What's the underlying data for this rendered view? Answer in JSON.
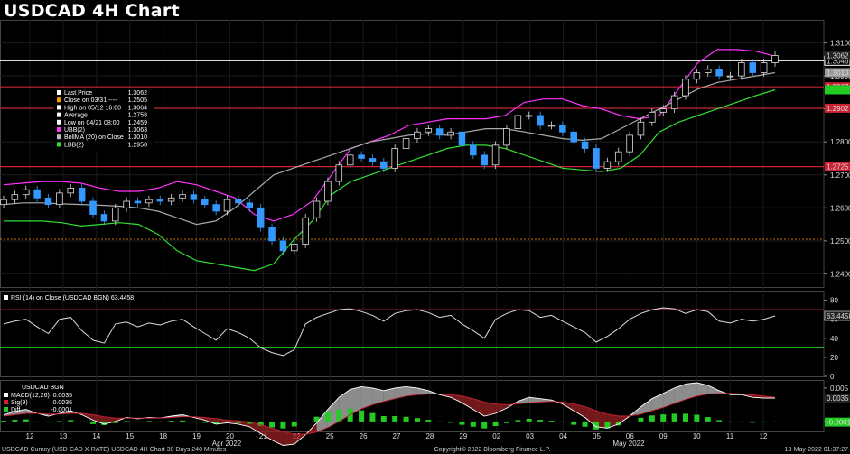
{
  "title": "USDCAD 4H Chart",
  "chart_data": [
    {
      "type": "candlestick",
      "title": "USDCAD 4H Chart",
      "ylim": [
        1.236,
        1.317
      ],
      "y_ticks": [
        "1.3100",
        "1.3000",
        "1.2900",
        "1.2800",
        "1.2700",
        "1.2600",
        "1.2500",
        "1.2400"
      ],
      "x_ticks": [
        "12",
        "13",
        "14",
        "15",
        "18",
        "19",
        "20",
        "21",
        "22",
        "25",
        "26",
        "27",
        "28",
        "29",
        "02",
        "03",
        "04",
        "05",
        "06",
        "09",
        "10",
        "11",
        "12"
      ],
      "month_labels": [
        "Apr 2022",
        "May 2022"
      ],
      "legend": [
        {
          "label": "Last Price",
          "value": "1.3062",
          "color": "#ffffff"
        },
        {
          "label": "Close on 03/31 ----",
          "value": "1.2505",
          "color": "#ff9900"
        },
        {
          "label": "High on 05/12 16:00",
          "value": "1.3064",
          "color": "#ffffff"
        },
        {
          "label": "Average",
          "value": "1.2758",
          "color": "#ffffff"
        },
        {
          "label": "Low on 04/21 08:00",
          "value": "1.2459",
          "color": "#ffffff"
        },
        {
          "label": "UBB(2)",
          "value": "1.3063",
          "color": "#ff33ff"
        },
        {
          "label": "BollMA (20)  on Close",
          "value": "1.3010",
          "color": "#bbbbbb"
        },
        {
          "label": "LBB(2)",
          "value": "1.2958",
          "color": "#33dd33"
        }
      ],
      "horizontal_lines": [
        {
          "value": 1.3046,
          "label": "1.3046",
          "color": "#ffffff"
        },
        {
          "value": 1.2967,
          "label": "1.2967",
          "color": "#cc2233"
        },
        {
          "value": 1.2902,
          "label": "1.2902",
          "color": "#cc2233"
        },
        {
          "value": 1.2725,
          "label": "1.2725",
          "color": "#cc2233"
        },
        {
          "value": 1.2505,
          "label": "",
          "color": "#ff9900"
        }
      ],
      "right_labels": [
        {
          "value": 1.3062,
          "label": "1.3062",
          "color": "#ffffff"
        },
        {
          "value": 1.301,
          "label": "1.3010",
          "color": "#999999"
        },
        {
          "value": 1.2958,
          "label": "",
          "color": "#22cc22"
        }
      ],
      "close_series": [
        1.2625,
        1.264,
        1.2655,
        1.263,
        1.261,
        1.2645,
        1.266,
        1.262,
        1.258,
        1.256,
        1.26,
        1.262,
        1.2615,
        1.2625,
        1.262,
        1.263,
        1.264,
        1.2625,
        1.261,
        1.259,
        1.2625,
        1.2615,
        1.26,
        1.254,
        1.25,
        1.247,
        1.249,
        1.257,
        1.262,
        1.268,
        1.273,
        1.276,
        1.275,
        1.274,
        1.272,
        1.278,
        1.281,
        1.283,
        1.284,
        1.282,
        1.283,
        1.279,
        1.276,
        1.273,
        1.279,
        1.284,
        1.288,
        1.288,
        1.285,
        1.285,
        1.283,
        1.28,
        1.278,
        1.272,
        1.274,
        1.277,
        1.282,
        1.286,
        1.289,
        1.29,
        1.294,
        1.299,
        1.301,
        1.302,
        1.3,
        1.3,
        1.304,
        1.301,
        1.304,
        1.3062
      ],
      "upper_band": [
        1.267,
        1.2675,
        1.268,
        1.268,
        1.2675,
        1.266,
        1.265,
        1.265,
        1.266,
        1.268,
        1.267,
        1.265,
        1.263,
        1.258,
        1.256,
        1.258,
        1.262,
        1.27,
        1.278,
        1.28,
        1.282,
        1.285,
        1.286,
        1.287,
        1.287,
        1.287,
        1.288,
        1.292,
        1.293,
        1.293,
        1.291,
        1.29,
        1.288,
        1.287,
        1.288,
        1.296,
        1.304,
        1.308,
        1.308,
        1.3075,
        1.306
      ],
      "middle_band": [
        1.261,
        1.2615,
        1.2615,
        1.2612,
        1.261,
        1.2608,
        1.2605,
        1.26,
        1.259,
        1.257,
        1.255,
        1.256,
        1.26,
        1.265,
        1.27,
        1.272,
        1.274,
        1.276,
        1.278,
        1.28,
        1.281,
        1.282,
        1.2825,
        1.282,
        1.283,
        1.284,
        1.284,
        1.283,
        1.282,
        1.281,
        1.2805,
        1.281,
        1.284,
        1.287,
        1.29,
        1.293,
        1.296,
        1.298,
        1.299,
        1.3,
        1.301
      ],
      "lower_band": [
        1.256,
        1.256,
        1.256,
        1.2555,
        1.2545,
        1.255,
        1.2555,
        1.255,
        1.252,
        1.247,
        1.244,
        1.243,
        1.242,
        1.241,
        1.243,
        1.25,
        1.256,
        1.264,
        1.268,
        1.27,
        1.272,
        1.274,
        1.276,
        1.278,
        1.279,
        1.279,
        1.278,
        1.276,
        1.274,
        1.272,
        1.2715,
        1.271,
        1.272,
        1.276,
        1.283,
        1.286,
        1.288,
        1.29,
        1.292,
        1.294,
        1.2958
      ]
    },
    {
      "type": "line",
      "title": "RSI (14)  on Close (USDCAD BGN) 63.4458",
      "ylim": [
        0,
        90
      ],
      "y_ticks": [
        "80",
        "60",
        "40",
        "20",
        "0"
      ],
      "levels": [
        70,
        30
      ],
      "last_label": "63.4458",
      "values": [
        55,
        58,
        60,
        52,
        45,
        60,
        62,
        48,
        38,
        35,
        55,
        57,
        52,
        56,
        54,
        58,
        60,
        52,
        45,
        38,
        50,
        46,
        40,
        30,
        25,
        22,
        28,
        55,
        62,
        66,
        70,
        71,
        68,
        64,
        58,
        66,
        69,
        70,
        67,
        62,
        64,
        55,
        48,
        40,
        60,
        66,
        70,
        69,
        62,
        64,
        58,
        52,
        46,
        36,
        42,
        50,
        60,
        66,
        70,
        72,
        71,
        66,
        70,
        68,
        58,
        56,
        60,
        58,
        60,
        63.4458
      ]
    },
    {
      "type": "line",
      "title": "USDCAD BGN",
      "ylim": [
        -0.0015,
        0.0062
      ],
      "y_ticks": [
        "0.005",
        "0.000"
      ],
      "legend": [
        {
          "label": "MACD(12,26)",
          "value": "0.0035",
          "color": "#ffffff"
        },
        {
          "label": "Sig(9)",
          "value": "0.0036",
          "color": "#cc2233"
        },
        {
          "label": "Diff",
          "value": "-0.0001",
          "color": "#22cc22"
        }
      ],
      "right_labels": [
        {
          "value": 0.0035,
          "label": "0.0035",
          "color": "#ffffff"
        },
        {
          "value": -0.0001,
          "label": "-0.0001",
          "color": "#22cc22"
        }
      ],
      "macd": [
        0.001,
        0.0015,
        0.0018,
        0.0012,
        0.0008,
        0.0012,
        0.0016,
        0.001,
        0.0002,
        -0.0004,
        0.0,
        0.0006,
        0.0004,
        0.0006,
        0.0005,
        0.0008,
        0.001,
        0.0006,
        0.0002,
        -0.0004,
        -0.0002,
        -0.0004,
        -0.0008,
        -0.0018,
        -0.0028,
        -0.0036,
        -0.0034,
        -0.002,
        -0.0002,
        0.0018,
        0.0036,
        0.0048,
        0.0052,
        0.005,
        0.0046,
        0.005,
        0.0052,
        0.005,
        0.0046,
        0.004,
        0.0036,
        0.0028,
        0.0018,
        0.0008,
        0.0012,
        0.002,
        0.003,
        0.0036,
        0.0034,
        0.0032,
        0.0026,
        0.0016,
        0.0006,
        -0.0008,
        -0.001,
        -0.0004,
        0.0008,
        0.0022,
        0.0034,
        0.0042,
        0.005,
        0.0056,
        0.0058,
        0.0054,
        0.0046,
        0.004,
        0.004,
        0.0036,
        0.0035,
        0.0035
      ],
      "signal": [
        0.0008,
        0.001,
        0.0012,
        0.0012,
        0.0011,
        0.0011,
        0.0012,
        0.0012,
        0.001,
        0.0007,
        0.0005,
        0.0005,
        0.0005,
        0.0005,
        0.0005,
        0.0006,
        0.0007,
        0.0007,
        0.0006,
        0.0004,
        0.0002,
        0.0001,
        -0.0001,
        -0.0005,
        -0.001,
        -0.0015,
        -0.0019,
        -0.0019,
        -0.0016,
        -0.0009,
        0.0,
        0.001,
        0.0019,
        0.0025,
        0.003,
        0.0034,
        0.0038,
        0.004,
        0.0041,
        0.0041,
        0.004,
        0.0038,
        0.0034,
        0.0029,
        0.0026,
        0.0025,
        0.0026,
        0.0028,
        0.0029,
        0.003,
        0.0029,
        0.0026,
        0.0022,
        0.0016,
        0.0011,
        0.0008,
        0.0008,
        0.0011,
        0.0016,
        0.0021,
        0.0027,
        0.0033,
        0.0038,
        0.0041,
        0.0042,
        0.0042,
        0.0041,
        0.004,
        0.0038,
        0.0036
      ]
    }
  ],
  "footer": {
    "left": "USDCAD Curncy (USD-CAD X-RATE) USDCAD 4H Chart 30 Days 240 Minutes",
    "center": "Copyright© 2022 Bloomberg Finance L.P.",
    "right": "13-May-2022 01:37:27"
  }
}
